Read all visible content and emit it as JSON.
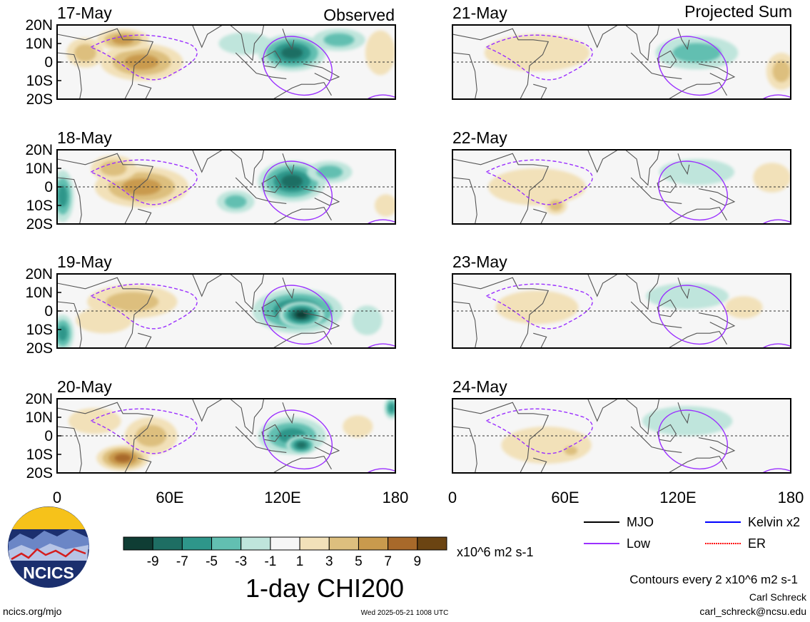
{
  "chart_data": {
    "type": "heatmap",
    "variable_title": "1-day CHI200",
    "units": "x10^6 m2 s-1",
    "colorbar": {
      "ticks": [
        "-9",
        "-7",
        "-5",
        "-3",
        "-1",
        "1",
        "3",
        "5",
        "7",
        "9"
      ],
      "colors": [
        "#0f3d34",
        "#1e6e63",
        "#2e968a",
        "#62bfb1",
        "#bfe5dc",
        "#f6f6f6",
        "#f2e1b9",
        "#ddbf7e",
        "#c99a4d",
        "#a8692a",
        "#6b4412"
      ]
    },
    "x_ticks": [
      "0",
      "60E",
      "120E",
      "180"
    ],
    "x_range": [
      0,
      180
    ],
    "y_ticks": [
      "20N",
      "10N",
      "0",
      "10S",
      "20S"
    ],
    "y_range": [
      -20,
      20
    ],
    "columns": [
      {
        "heading": "Observed",
        "panels": [
          {
            "date": "17-May",
            "blobs": [
              {
                "lon": 45,
                "lat": 0,
                "rlon": 22,
                "rlat": 10,
                "v": 6
              },
              {
                "lon": 35,
                "lat": 12,
                "rlon": 14,
                "rlat": 6,
                "v": 5
              },
              {
                "lon": 15,
                "lat": 5,
                "rlon": 10,
                "rlat": 8,
                "v": 3
              },
              {
                "lon": 100,
                "lat": 10,
                "rlon": 14,
                "rlat": 6,
                "v": -2
              },
              {
                "lon": 125,
                "lat": 5,
                "rlon": 18,
                "rlat": 10,
                "v": -7
              },
              {
                "lon": 150,
                "lat": 12,
                "rlon": 14,
                "rlat": 6,
                "v": -3
              },
              {
                "lon": 172,
                "lat": 5,
                "rlon": 8,
                "rlat": 12,
                "v": 2
              }
            ]
          },
          {
            "date": "18-May",
            "blobs": [
              {
                "lon": 45,
                "lat": 0,
                "rlon": 25,
                "rlat": 11,
                "v": 6
              },
              {
                "lon": 30,
                "lat": 10,
                "rlon": 12,
                "rlat": 7,
                "v": 4
              },
              {
                "lon": 3,
                "lat": -5,
                "rlon": 6,
                "rlat": 14,
                "v": -6
              },
              {
                "lon": 95,
                "lat": -8,
                "rlon": 10,
                "rlat": 6,
                "v": -4
              },
              {
                "lon": 125,
                "lat": 3,
                "rlon": 18,
                "rlat": 11,
                "v": -7
              },
              {
                "lon": 145,
                "lat": 8,
                "rlon": 12,
                "rlat": 6,
                "v": -4
              },
              {
                "lon": 175,
                "lat": -10,
                "rlon": 6,
                "rlat": 6,
                "v": 2
              }
            ]
          },
          {
            "date": "19-May",
            "blobs": [
              {
                "lon": 40,
                "lat": 5,
                "rlon": 24,
                "rlat": 9,
                "v": 3
              },
              {
                "lon": 25,
                "lat": -5,
                "rlon": 15,
                "rlat": 7,
                "v": 2
              },
              {
                "lon": 3,
                "lat": -12,
                "rlon": 6,
                "rlat": 10,
                "v": -5
              },
              {
                "lon": 128,
                "lat": 0,
                "rlon": 24,
                "rlat": 12,
                "v": -7
              },
              {
                "lon": 130,
                "lat": -2,
                "rlon": 12,
                "rlat": 7,
                "v": -9
              },
              {
                "lon": 165,
                "lat": -5,
                "rlon": 8,
                "rlat": 8,
                "v": -2
              }
            ]
          },
          {
            "date": "20-May",
            "blobs": [
              {
                "lon": 35,
                "lat": -12,
                "rlon": 14,
                "rlat": 7,
                "v": 7
              },
              {
                "lon": 50,
                "lat": 0,
                "rlon": 14,
                "rlat": 10,
                "v": 4
              },
              {
                "lon": 20,
                "lat": 8,
                "rlon": 14,
                "rlat": 7,
                "v": 2
              },
              {
                "lon": 125,
                "lat": 0,
                "rlon": 18,
                "rlat": 10,
                "v": -6
              },
              {
                "lon": 130,
                "lat": -5,
                "rlon": 8,
                "rlat": 5,
                "v": -8
              },
              {
                "lon": 178,
                "lat": 15,
                "rlon": 4,
                "rlat": 6,
                "v": -6
              },
              {
                "lon": 160,
                "lat": 5,
                "rlon": 8,
                "rlat": 6,
                "v": 2
              }
            ]
          }
        ]
      },
      {
        "heading": "Projected Sum",
        "panels": [
          {
            "date": "21-May",
            "blobs": [
              {
                "lon": 45,
                "lat": 5,
                "rlon": 28,
                "rlat": 10,
                "v": 2
              },
              {
                "lon": 130,
                "lat": 5,
                "rlon": 22,
                "rlat": 9,
                "v": -3
              },
              {
                "lon": 175,
                "lat": -5,
                "rlon": 8,
                "rlat": 10,
                "v": 3
              }
            ]
          },
          {
            "date": "22-May",
            "blobs": [
              {
                "lon": 45,
                "lat": 0,
                "rlon": 26,
                "rlat": 10,
                "v": 2
              },
              {
                "lon": 55,
                "lat": -10,
                "rlon": 6,
                "rlat": 5,
                "v": 3
              },
              {
                "lon": 130,
                "lat": 8,
                "rlon": 20,
                "rlat": 7,
                "v": -2
              },
              {
                "lon": 170,
                "lat": 5,
                "rlon": 10,
                "rlat": 8,
                "v": 2
              }
            ]
          },
          {
            "date": "23-May",
            "blobs": [
              {
                "lon": 45,
                "lat": 2,
                "rlon": 22,
                "rlat": 9,
                "v": 1
              },
              {
                "lon": 125,
                "lat": 8,
                "rlon": 22,
                "rlat": 7,
                "v": -2
              },
              {
                "lon": 155,
                "lat": 2,
                "rlon": 10,
                "rlat": 6,
                "v": 2
              }
            ]
          },
          {
            "date": "24-May",
            "blobs": [
              {
                "lon": 50,
                "lat": -5,
                "rlon": 24,
                "rlat": 10,
                "v": 2
              },
              {
                "lon": 63,
                "lat": -8,
                "rlon": 6,
                "rlat": 4,
                "v": 3
              },
              {
                "lon": 125,
                "lat": 8,
                "rlon": 24,
                "rlat": 8,
                "v": -2
              }
            ]
          }
        ]
      }
    ],
    "legend": {
      "entries": [
        {
          "label": "MJO",
          "color": "#000000",
          "style": "solid"
        },
        {
          "label": "Kelvin x2",
          "color": "#0000ff",
          "style": "solid"
        },
        {
          "label": "Low",
          "color": "#9b30ff",
          "style": "solid"
        },
        {
          "label": "ER",
          "color": "#ff0000",
          "style": "dotted"
        }
      ],
      "note": "Contours every 2 x10^6 m2 s-1"
    }
  },
  "footer": {
    "logo_text": "NCICS",
    "site": "ncics.org/mjo",
    "timestamp": "Wed 2025-05-21 1008 UTC",
    "author": "Carl Schreck",
    "email": "carl_schreck@ncsu.edu"
  }
}
